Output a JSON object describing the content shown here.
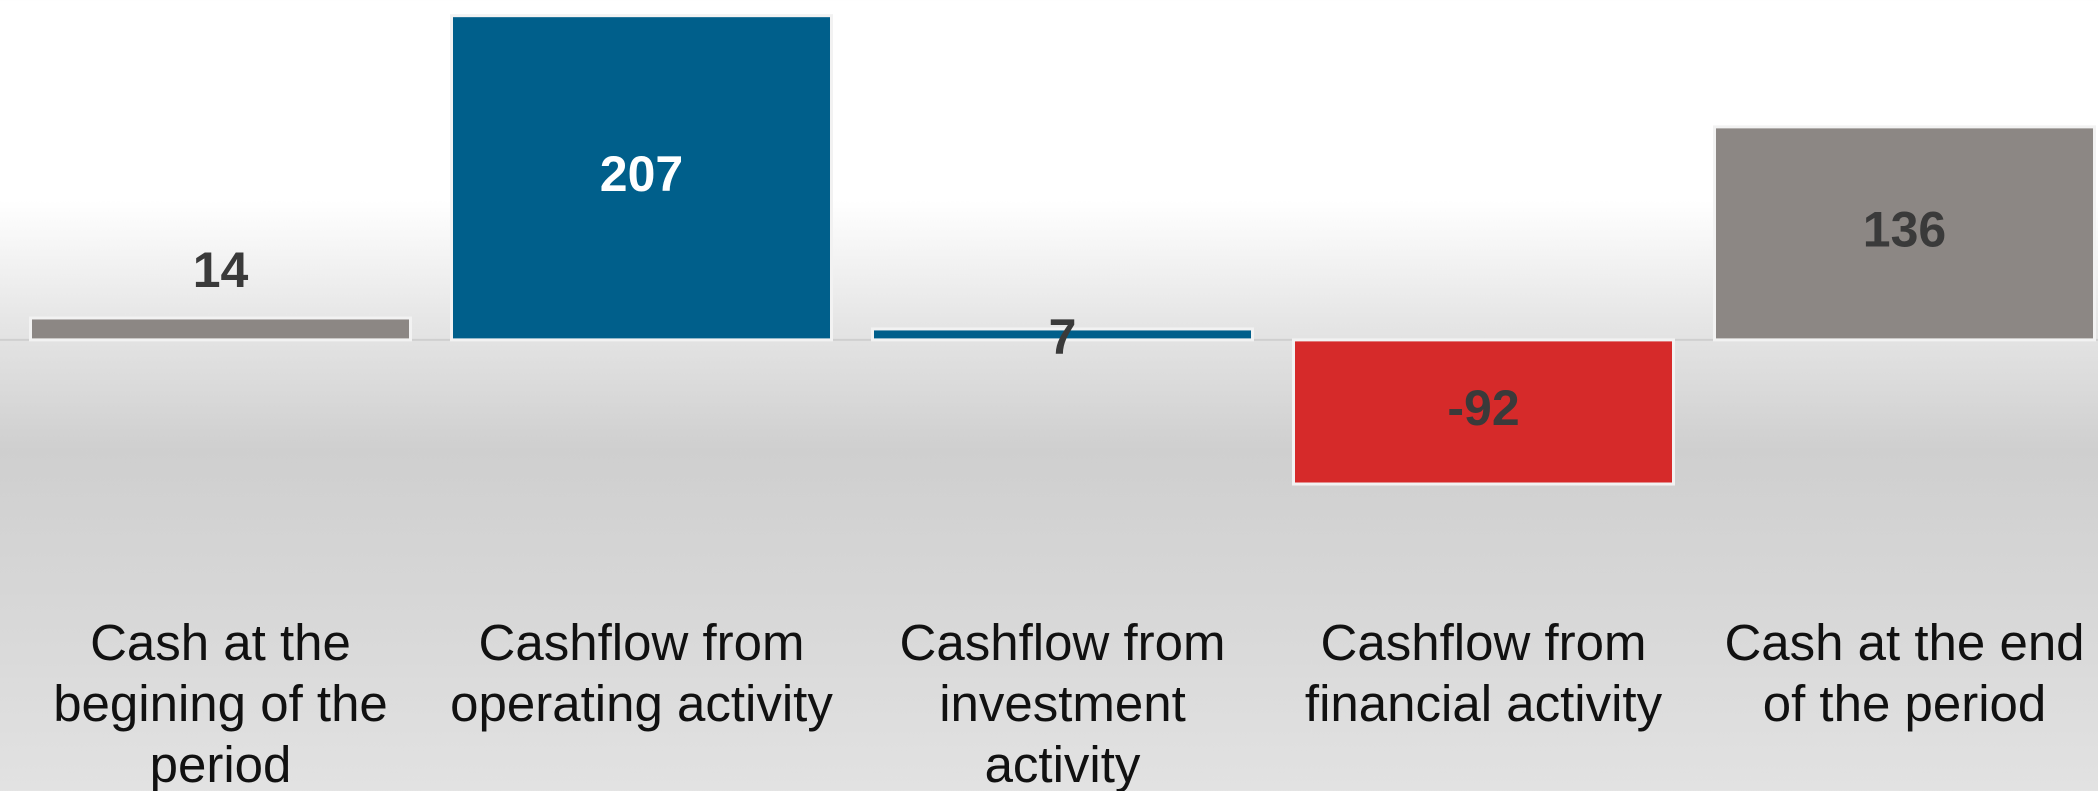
{
  "chart_data": {
    "type": "bar",
    "categories": [
      "Cash at the begining of the period",
      "Cashflow from operating activity",
      "Cashflow from investment activity",
      "Cashflow from financial activity",
      "Cash at the end of the period"
    ],
    "values": [
      14,
      207,
      7,
      -92,
      136
    ],
    "colors": [
      "#8c8784",
      "#005f8b",
      "#005f8b",
      "#d62a2a",
      "#8c8784"
    ],
    "ylim": [
      -288,
      217
    ]
  }
}
